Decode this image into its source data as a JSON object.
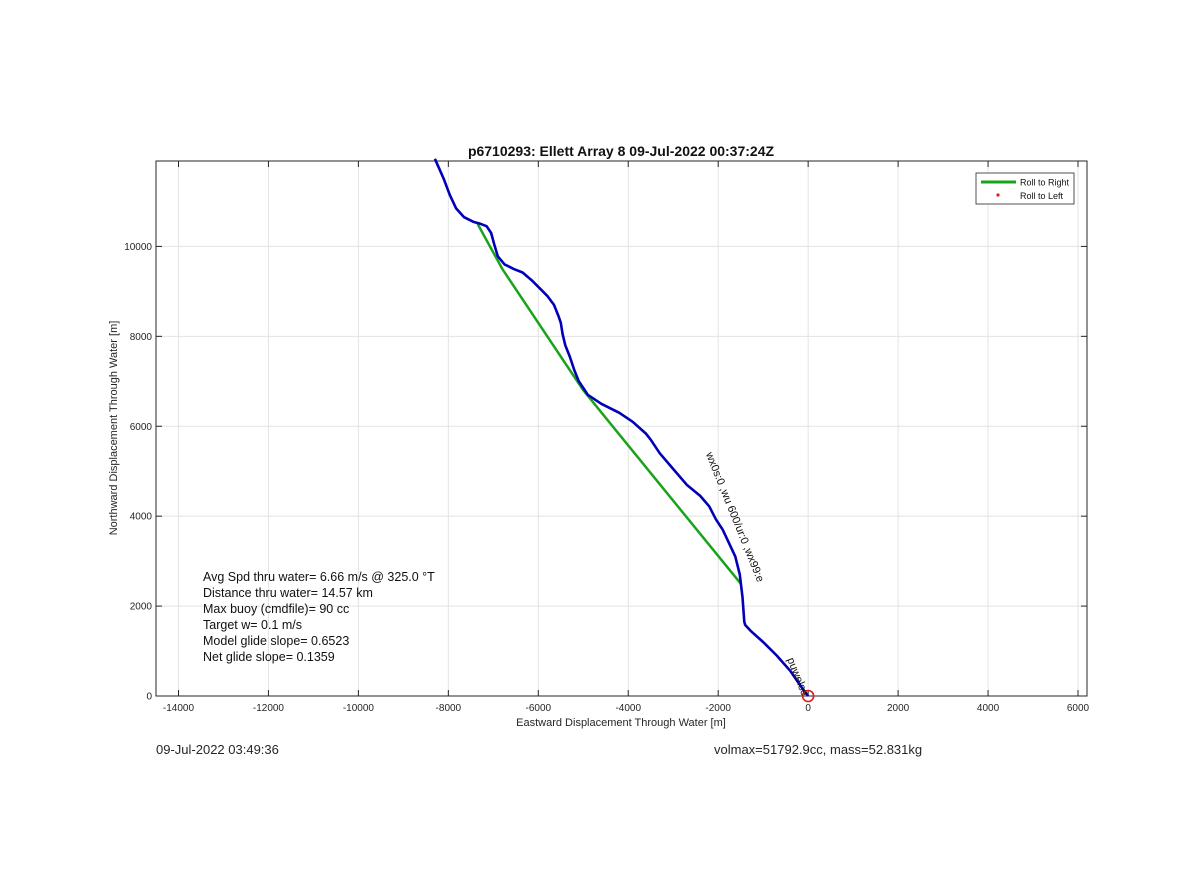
{
  "chart_data": {
    "type": "line",
    "title": "p6710293: Ellett Array 8 09-Jul-2022 00:37:24Z",
    "xlabel": "Eastward Displacement Through Water [m]",
    "ylabel": "Northward Displacement Through Water [m]",
    "xlim": [
      -14500,
      6200
    ],
    "ylim": [
      0,
      11900
    ],
    "xticks": [
      -14000,
      -12000,
      -10000,
      -8000,
      -6000,
      -4000,
      -2000,
      0,
      2000,
      4000,
      6000
    ],
    "yticks": [
      0,
      2000,
      4000,
      6000,
      8000,
      10000
    ],
    "grid": true,
    "legend_position": "top-right",
    "legend": [
      {
        "label": "Roll to Right",
        "color": "#1aa31a",
        "marker": "line"
      },
      {
        "label": "Roll to Left",
        "color": "#e41a1a",
        "marker": "dot"
      }
    ],
    "series": [
      {
        "color": "#0000b8",
        "x": [
          0,
          -150,
          -400,
          -700,
          -1000,
          -1280,
          -1400,
          -1420,
          -1460,
          -1520,
          -1620,
          -1760,
          -1900,
          -2050,
          -2200,
          -2400,
          -2700,
          -3000,
          -3300,
          -3500,
          -3600,
          -3900,
          -4200,
          -4600,
          -4900,
          -5000,
          -5100,
          -5200,
          -5300,
          -5400,
          -5460,
          -5500,
          -5550,
          -5650,
          -5800,
          -5950,
          -6150,
          -6350,
          -6550,
          -6750,
          -6900,
          -6980,
          -7050,
          -7150,
          -7280,
          -7450,
          -7650,
          -7830,
          -7970,
          -8100,
          -8300
        ],
        "y": [
          0,
          200,
          560,
          900,
          1200,
          1450,
          1580,
          1650,
          2200,
          2700,
          3100,
          3400,
          3700,
          3930,
          4220,
          4450,
          4700,
          5050,
          5400,
          5700,
          5830,
          6100,
          6300,
          6500,
          6700,
          6850,
          7000,
          7250,
          7550,
          7800,
          8050,
          8300,
          8450,
          8700,
          8900,
          9050,
          9250,
          9420,
          9500,
          9600,
          9780,
          10050,
          10300,
          10450,
          10500,
          10550,
          10650,
          10850,
          11150,
          11500,
          11950
        ]
      },
      {
        "name": "Roll to Right",
        "color": "#1aa31a",
        "x": [
          -1500,
          -5000,
          -6800,
          -7350
        ],
        "y": [
          2500,
          6800,
          9500,
          10500
        ]
      }
    ],
    "start_marker": {
      "x": 0,
      "y": 0,
      "color": "#e41a1a"
    },
    "annotations": [
      {
        "text": "wx0s:0 ,wu 600/ur:0 ,wx99:e",
        "x": -1700,
        "y": 3950,
        "rotation": 68
      },
      {
        "text": "puwelse",
        "x": -300,
        "y": 400,
        "rotation": 68
      }
    ]
  },
  "stats": {
    "avg_spd": "Avg Spd thru water=  6.66 m/s @ 325.0 °T",
    "distance": "Distance thru water= 14.57 km",
    "max_buoy": "Max buoy (cmdfile)= 90 cc",
    "target_w": "Target w= 0.1 m/s",
    "model_glide": "Model glide slope= 0.6523",
    "net_glide": "Net glide slope= 0.1359"
  },
  "footer": {
    "timestamp": "09-Jul-2022 03:49:36",
    "volmax_mass": "volmax=51792.9cc, mass=52.831kg"
  }
}
